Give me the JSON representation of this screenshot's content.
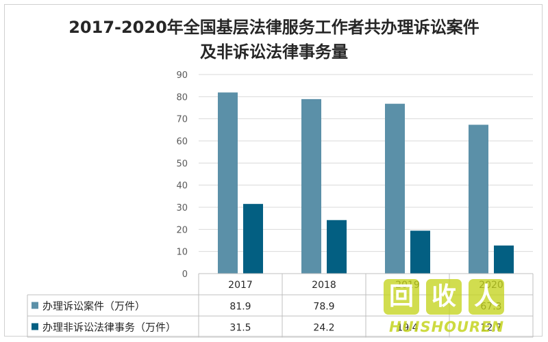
{
  "title_line1": "2017-2020年全国基层法律服务工作者共办理诉讼案件",
  "title_line2": "及非诉讼法律事务量",
  "chart_data": {
    "type": "bar",
    "title": "2017-2020年全国基层法律服务工作者共办理诉讼案件及非诉讼法律事务量",
    "categories": [
      "2017",
      "2018",
      "2019",
      "2020"
    ],
    "series": [
      {
        "name": "办理诉讼案件（万件）",
        "color": "#5b90a8",
        "values": [
          81.9,
          78.9,
          76.8,
          67.3
        ]
      },
      {
        "name": "办理非诉讼法律事务（万件）",
        "color": "#035f82",
        "values": [
          31.5,
          24.2,
          19.4,
          12.7
        ]
      }
    ],
    "table_values": [
      [
        "81.9",
        "78.9",
        "",
        "67.3"
      ],
      [
        "31.5",
        "24.2",
        "19.4",
        "12.7"
      ]
    ],
    "ylim": [
      0,
      90
    ],
    "yticks": [
      0,
      10,
      20,
      30,
      40,
      50,
      60,
      70,
      80,
      90
    ],
    "xlabel": "",
    "ylabel": "",
    "grid": true,
    "legend": "data-table"
  },
  "watermark": {
    "chars": [
      "回",
      "收",
      "人"
    ],
    "text": "HUISHOUREN"
  }
}
